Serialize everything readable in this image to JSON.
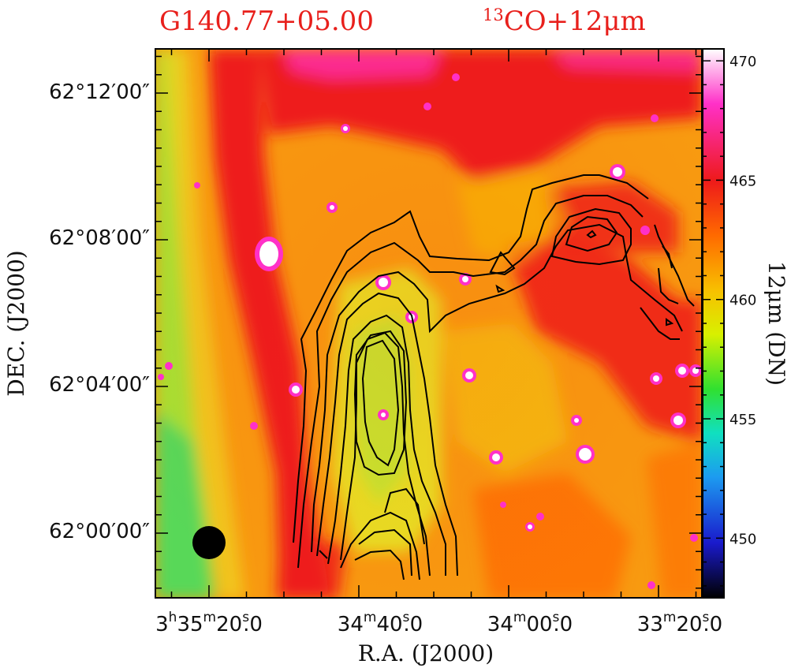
{
  "chart_data": {
    "type": "heatmap",
    "title_left": "G140.77+05.00",
    "title_right_sup": "13",
    "title_right": "CO+12μm",
    "xlabel": "R.A. (J2000)",
    "ylabel": "DEC. (J2000)",
    "x_ticks": [
      {
        "h": "3",
        "hsup": "h",
        "m": "35",
        "msup": "m",
        "s": "20",
        "ssup": "s",
        "frac": ".0"
      },
      {
        "h": "",
        "hsup": "",
        "m": "34",
        "msup": "m",
        "s": "40",
        "ssup": "s",
        "frac": ".0"
      },
      {
        "h": "",
        "hsup": "",
        "m": "34",
        "msup": "m",
        "s": "00",
        "ssup": "s",
        "frac": ".0"
      },
      {
        "h": "",
        "hsup": "",
        "m": "33",
        "msup": "m",
        "s": "20",
        "ssup": "s",
        "frac": ".0"
      }
    ],
    "y_ticks": [
      "62°12′00″",
      "62°08′00″",
      "62°04′00″",
      "62°00′00″"
    ],
    "colorbar": {
      "label": "12μm (DN)",
      "ticks": [
        "470",
        "465",
        "460",
        "455",
        "450"
      ],
      "range": [
        447.5,
        470.5
      ],
      "colors": [
        "#000000",
        "#1a1acc",
        "#1c9bf0",
        "#10e0c0",
        "#30e030",
        "#d8f000",
        "#f8c000",
        "#ff6a00",
        "#ee1a1a",
        "#ff30c8",
        "#ffffff"
      ]
    },
    "beam": "filled circle",
    "contours": "13CO integrated intensity (black)"
  }
}
